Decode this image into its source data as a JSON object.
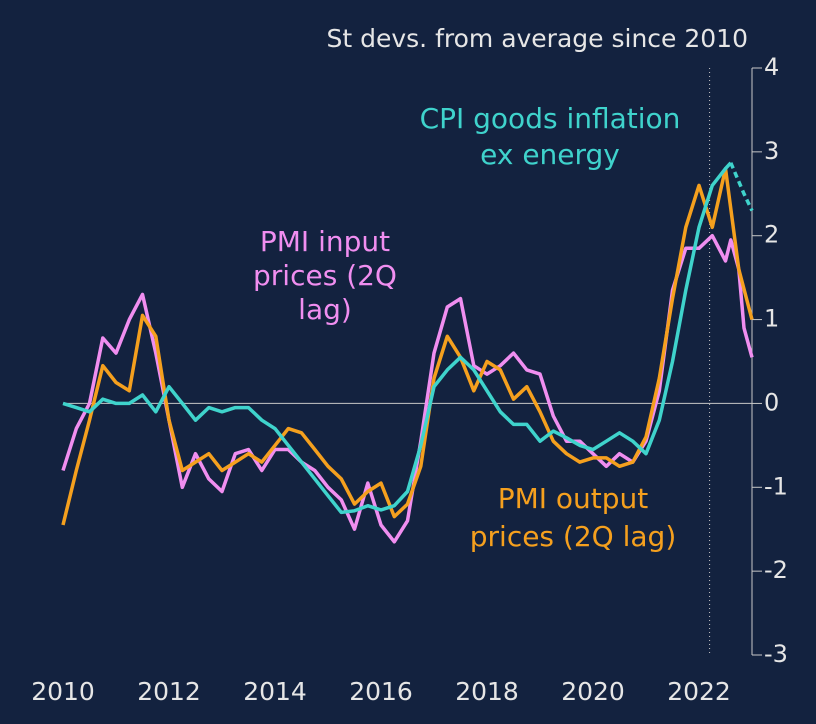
{
  "chart_data": {
    "type": "line",
    "title": "St devs. from average since 2010",
    "xlim": [
      2010,
      2023
    ],
    "xticks": [
      2010,
      2012,
      2014,
      2016,
      2018,
      2020,
      2022
    ],
    "ylim": [
      -3,
      4
    ],
    "yticks": [
      4,
      3,
      2,
      1,
      0,
      -1,
      -2,
      -3
    ],
    "vline": 2022.2,
    "series": [
      {
        "label": [
          "PMI input",
          "prices (2Q",
          "lag)"
        ],
        "color": "#f08ef0",
        "x": [
          2010,
          2010.25,
          2010.5,
          2010.75,
          2011,
          2011.25,
          2011.5,
          2011.75,
          2012,
          2012.25,
          2012.5,
          2012.75,
          2013,
          2013.25,
          2013.5,
          2013.75,
          2014,
          2014.25,
          2014.5,
          2014.75,
          2015,
          2015.25,
          2015.5,
          2015.75,
          2016,
          2016.25,
          2016.5,
          2016.75,
          2017,
          2017.25,
          2017.5,
          2017.75,
          2018,
          2018.25,
          2018.5,
          2018.75,
          2019,
          2019.25,
          2019.5,
          2019.75,
          2020,
          2020.25,
          2020.5,
          2020.75,
          2021,
          2021.25,
          2021.5,
          2021.75,
          2022,
          2022.25,
          2022.5,
          2022.6,
          2022.75,
          2022.85,
          2023
        ],
        "values": [
          -0.8,
          -0.3,
          0,
          0.78,
          0.6,
          1.0,
          1.3,
          0.6,
          -0.2,
          -1.0,
          -0.6,
          -0.9,
          -1.05,
          -0.6,
          -0.55,
          -0.8,
          -0.55,
          -0.55,
          -0.7,
          -0.8,
          -1.0,
          -1.15,
          -1.5,
          -0.95,
          -1.45,
          -1.65,
          -1.4,
          -0.45,
          0.6,
          1.15,
          1.25,
          0.45,
          0.35,
          0.45,
          0.6,
          0.4,
          0.35,
          -0.15,
          -0.45,
          -0.45,
          -0.6,
          -0.75,
          -0.6,
          -0.7,
          -0.45,
          0.15,
          1.35,
          1.85,
          1.85,
          2.0,
          1.7,
          1.95,
          1.6,
          0.9,
          0.55
        ]
      },
      {
        "label": [
          "PMI output",
          "prices (2Q lag)"
        ],
        "color": "#f5a01e",
        "x": [
          2010,
          2010.25,
          2010.5,
          2010.75,
          2011,
          2011.25,
          2011.5,
          2011.75,
          2012,
          2012.25,
          2012.5,
          2012.75,
          2013,
          2013.25,
          2013.5,
          2013.75,
          2014,
          2014.25,
          2014.5,
          2014.75,
          2015,
          2015.25,
          2015.5,
          2015.75,
          2016,
          2016.25,
          2016.5,
          2016.75,
          2017,
          2017.25,
          2017.5,
          2017.75,
          2018,
          2018.25,
          2018.5,
          2018.75,
          2019,
          2019.25,
          2019.5,
          2019.75,
          2020,
          2020.25,
          2020.5,
          2020.75,
          2021,
          2021.25,
          2021.5,
          2021.75,
          2022,
          2022.25,
          2022.5,
          2022.75,
          2023
        ],
        "values": [
          -1.45,
          -0.8,
          -0.2,
          0.45,
          0.25,
          0.15,
          1.05,
          0.8,
          -0.2,
          -0.8,
          -0.7,
          -0.6,
          -0.8,
          -0.7,
          -0.6,
          -0.7,
          -0.5,
          -0.3,
          -0.35,
          -0.55,
          -0.75,
          -0.9,
          -1.2,
          -1.05,
          -0.95,
          -1.35,
          -1.2,
          -0.75,
          0.3,
          0.8,
          0.55,
          0.15,
          0.5,
          0.4,
          0.05,
          0.2,
          -0.1,
          -0.45,
          -0.6,
          -0.7,
          -0.65,
          -0.65,
          -0.75,
          -0.7,
          -0.4,
          0.3,
          1.25,
          2.1,
          2.6,
          2.1,
          2.8,
          1.6,
          1.0
        ]
      },
      {
        "label": [
          "CPI goods inflation",
          "ex energy"
        ],
        "color": "#3fd3cc",
        "x": [
          2010,
          2010.25,
          2010.5,
          2010.75,
          2011,
          2011.25,
          2011.5,
          2011.75,
          2012,
          2012.25,
          2012.5,
          2012.75,
          2013,
          2013.25,
          2013.5,
          2013.75,
          2014,
          2014.25,
          2014.5,
          2014.75,
          2015,
          2015.25,
          2015.5,
          2015.75,
          2016,
          2016.25,
          2016.5,
          2016.75,
          2017,
          2017.25,
          2017.5,
          2017.75,
          2018,
          2018.25,
          2018.5,
          2018.75,
          2019,
          2019.25,
          2019.5,
          2019.75,
          2020,
          2020.25,
          2020.5,
          2020.75,
          2021,
          2021.25,
          2021.5,
          2021.75,
          2022,
          2022.25,
          2022.5,
          2022.6
        ],
        "values": [
          0,
          -0.05,
          -0.1,
          0.05,
          0,
          0,
          0.1,
          -0.1,
          0.2,
          0,
          -0.2,
          -0.05,
          -0.1,
          -0.05,
          -0.05,
          -0.2,
          -0.3,
          -0.5,
          -0.7,
          -0.9,
          -1.1,
          -1.3,
          -1.28,
          -1.22,
          -1.27,
          -1.22,
          -1.05,
          -0.5,
          0.2,
          0.4,
          0.55,
          0.4,
          0.15,
          -0.1,
          -0.25,
          -0.25,
          -0.45,
          -0.33,
          -0.41,
          -0.5,
          -0.55,
          -0.45,
          -0.35,
          -0.45,
          -0.6,
          -0.2,
          0.5,
          1.35,
          2.1,
          2.6,
          2.8,
          2.87
        ]
      },
      {
        "color": "#3fd3cc",
        "dashed": true,
        "x": [
          2022.6,
          2022.85,
          2023
        ],
        "values": [
          2.87,
          2.5,
          2.3
        ]
      }
    ]
  }
}
